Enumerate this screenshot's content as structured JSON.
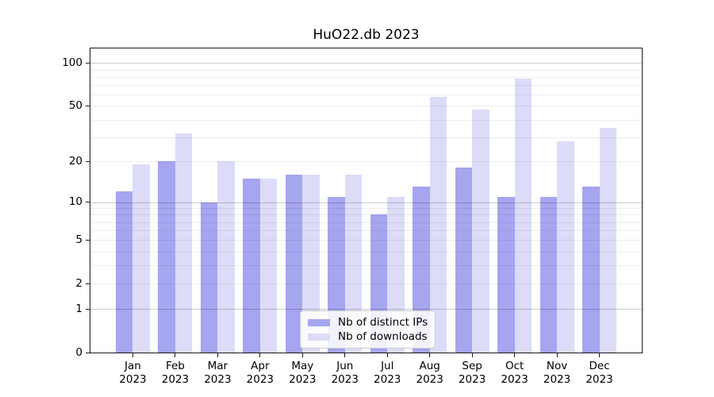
{
  "chart_data": {
    "type": "bar",
    "title": "HuO22.db 2023",
    "x_tick_months": [
      "Jan",
      "Feb",
      "Mar",
      "Apr",
      "May",
      "Jun",
      "Jul",
      "Aug",
      "Sep",
      "Oct",
      "Nov",
      "Dec"
    ],
    "x_tick_year": "2023",
    "categories": [
      "Jan 2023",
      "Feb 2023",
      "Mar 2023",
      "Apr 2023",
      "May 2023",
      "Jun 2023",
      "Jul 2023",
      "Aug 2023",
      "Sep 2023",
      "Oct 2023",
      "Nov 2023",
      "Dec 2023"
    ],
    "series": [
      {
        "name": "Nb of distinct IPs",
        "color": "#a5a5f0",
        "values": [
          12,
          20,
          10,
          15,
          16,
          11,
          8,
          13,
          18,
          11,
          11,
          13
        ]
      },
      {
        "name": "Nb of downloads",
        "color": "#dcdcf8",
        "values": [
          19,
          32,
          20,
          15,
          16,
          16,
          11,
          58,
          47,
          78,
          28,
          35
        ]
      }
    ],
    "yscale": "log1p",
    "ylim": [
      0,
      126.4
    ],
    "y_ticks": [
      100,
      50,
      20,
      10,
      5,
      2,
      1,
      0
    ],
    "grid": {
      "major": [
        1,
        10,
        100
      ],
      "minor": [
        2,
        3,
        4,
        5,
        6,
        7,
        8,
        9,
        20,
        30,
        40,
        50,
        60,
        70,
        80,
        90
      ],
      "major_color": "rgba(0,0,0,0.20)",
      "minor_color": "rgba(0,0,0,0.07)"
    },
    "legend": {
      "position": "lower center"
    },
    "axis_color": "#1a1a1a",
    "background_color": "#ffffff"
  }
}
